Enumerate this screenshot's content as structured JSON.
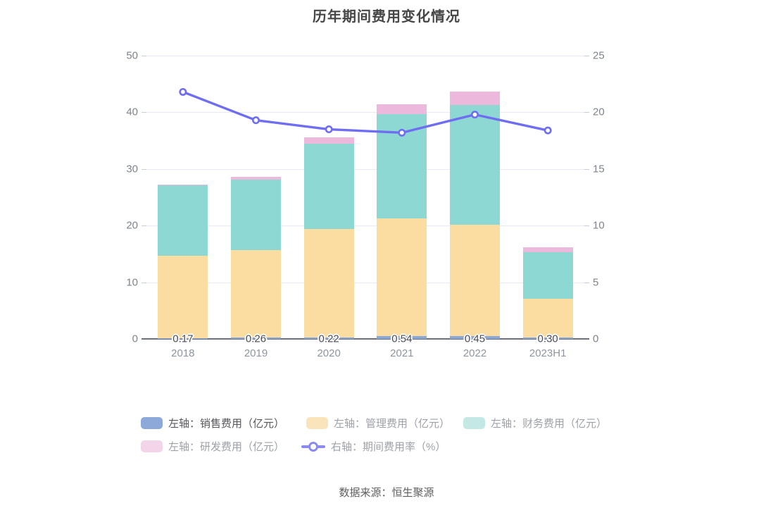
{
  "page": {
    "title": "历年期间费用变化情况",
    "source_note": "数据来源：恒生聚源",
    "background": "#ffffff"
  },
  "chart_data": {
    "type": "bar",
    "subtype": "stacked-bars-with-line-overlay",
    "title": "历年期间费用变化情况",
    "categories": [
      "2018",
      "2019",
      "2020",
      "2021",
      "2022",
      "2023H1"
    ],
    "series": [
      {
        "name": "左轴：销售费用（亿元）",
        "type": "bar",
        "axis": "left",
        "stack": true,
        "color": "#8AA7D8",
        "legend_color": "#8CA9DA",
        "values": [
          0.17,
          0.26,
          0.22,
          0.54,
          0.45,
          0.3
        ]
      },
      {
        "name": "左轴：管理费用（亿元）",
        "type": "bar",
        "axis": "left",
        "stack": true,
        "color": "#FBDDA2",
        "legend_color": "#FAE4BC",
        "values": [
          14.5,
          15.4,
          19.2,
          20.7,
          19.7,
          6.8
        ]
      },
      {
        "name": "左轴：财务费用（亿元）",
        "type": "bar",
        "axis": "left",
        "stack": true,
        "color": "#8ED8D3",
        "legend_color": "#C4E8E4",
        "values": [
          12.4,
          12.4,
          15.0,
          18.4,
          21.1,
          8.2
        ]
      },
      {
        "name": "左轴：研发费用（亿元）",
        "type": "bar",
        "axis": "left",
        "stack": true,
        "color": "#ECB9DC",
        "legend_color": "#F2D5E8",
        "values": [
          0.15,
          0.6,
          1.1,
          1.8,
          2.4,
          0.85
        ]
      },
      {
        "name": "右轴：期间费用率（%）",
        "type": "line",
        "axis": "right",
        "color": "#6F6EF2",
        "legend_color": "#8B8AF0",
        "values": [
          21.8,
          19.3,
          18.5,
          18.2,
          19.8,
          18.4
        ]
      }
    ],
    "bar_value_labels": [
      "0.17",
      "0.26",
      "0.22",
      "0.54",
      "0.45",
      "0.30"
    ],
    "left_axis": {
      "min": 0,
      "max": 50,
      "ticks": [
        "0",
        "10",
        "20",
        "30",
        "40",
        "50"
      ]
    },
    "right_axis": {
      "min": 0,
      "max": 25,
      "ticks": [
        "0",
        "5",
        "10",
        "15",
        "20",
        "25"
      ]
    },
    "grid": true,
    "legend_position": "bottom"
  },
  "legend": {
    "rows": [
      [
        0,
        1,
        2
      ],
      [
        3,
        4
      ]
    ],
    "label_colors": [
      "#55575C",
      "#9DA1A8",
      "#9DA1A8",
      "#9DA1A8",
      "#9DA1A8"
    ]
  },
  "colors": {
    "gridline": "#E8EAF3",
    "axis_line": "#6E7079",
    "tick_label": "#7D848F",
    "bar_label": "#474B52"
  }
}
